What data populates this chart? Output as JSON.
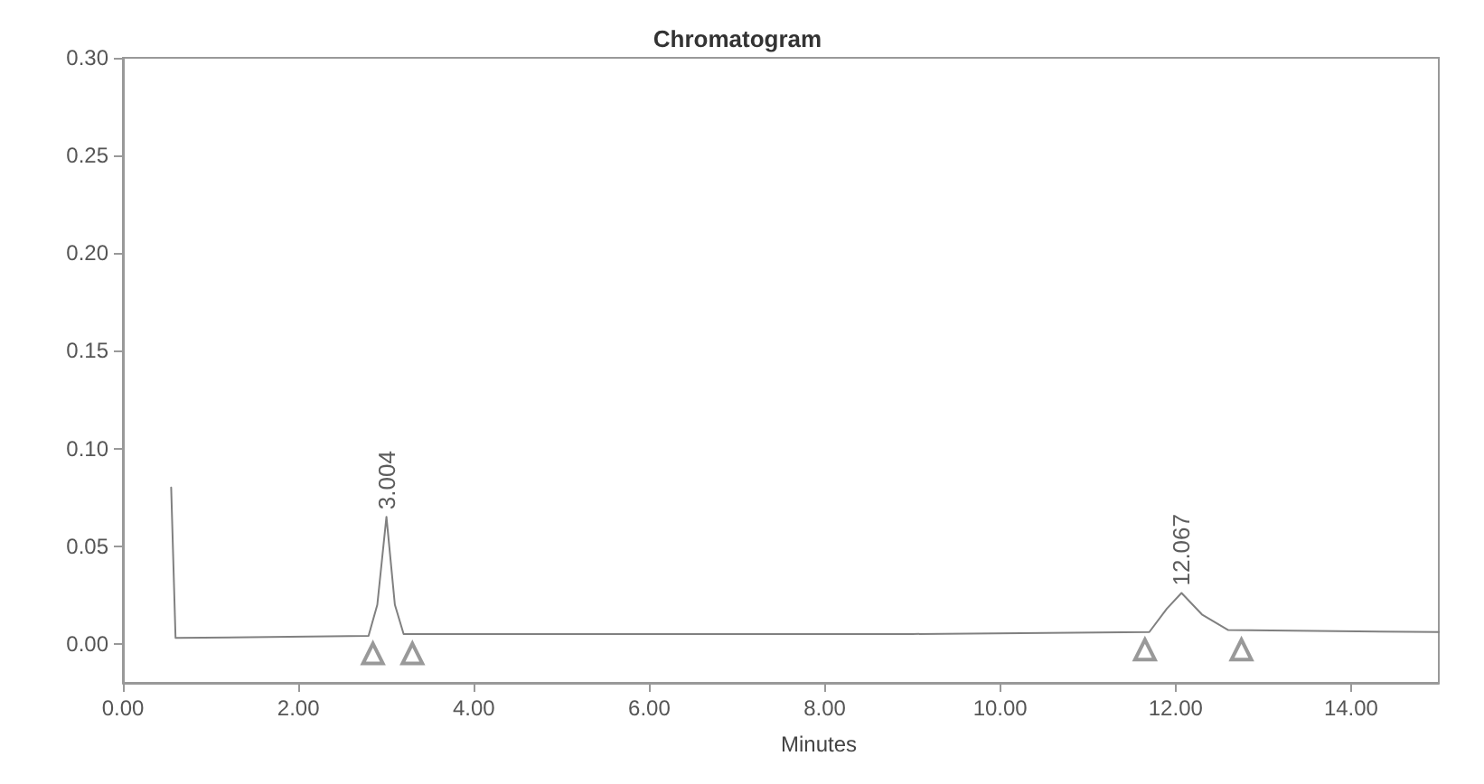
{
  "chart_data": {
    "type": "line",
    "title": "Chromatogram",
    "xlabel": "Minutes",
    "series": [
      {
        "color": "#808080",
        "x": [
          0.55,
          0.6,
          2.8,
          2.9,
          3.004,
          3.1,
          3.2,
          3.3,
          6,
          9,
          11.7,
          11.9,
          12.067,
          12.3,
          12.6,
          15
        ],
        "values": [
          0.08,
          0.003,
          0.004,
          0.02,
          0.065,
          0.02,
          0.005,
          0.005,
          0.005,
          0.005,
          0.006,
          0.018,
          0.026,
          0.015,
          0.007,
          0.006
        ]
      },
      {
        "type": "scatter",
        "color": "#808080",
        "marker": "triangle",
        "x": [
          2.85,
          3.3,
          11.65,
          12.75
        ],
        "values": [
          -0.005,
          -0.005,
          -0.003,
          -0.003
        ]
      }
    ],
    "annotations": [
      {
        "text": "3.004",
        "x": 3.004,
        "y": 0.065
      },
      {
        "text": "12.067",
        "x": 12.067,
        "y": 0.026
      }
    ],
    "xlim": [
      0,
      15
    ],
    "xticks": [
      {
        "value": 0,
        "label": "0.00"
      },
      {
        "value": 2,
        "label": "2.00"
      },
      {
        "value": 4,
        "label": "4.00"
      },
      {
        "value": 6,
        "label": "6.00"
      },
      {
        "value": 8,
        "label": "8.00"
      },
      {
        "value": 10,
        "label": "10.00"
      },
      {
        "value": 12,
        "label": "12.00"
      },
      {
        "value": 14,
        "label": "14.00"
      }
    ],
    "ylim": [
      -0.02,
      0.3
    ],
    "yticks": [
      {
        "value": 0,
        "label": "0.00"
      },
      {
        "value": 0.05,
        "label": "0.05"
      },
      {
        "value": 0.1,
        "label": "0.10"
      },
      {
        "value": 0.15,
        "label": "0.15"
      },
      {
        "value": 0.2,
        "label": "0.20"
      },
      {
        "value": 0.25,
        "label": "0.25"
      },
      {
        "value": 0.3,
        "label": "0.30"
      }
    ],
    "grid": false,
    "marker": "none",
    "line_style": "solid"
  }
}
